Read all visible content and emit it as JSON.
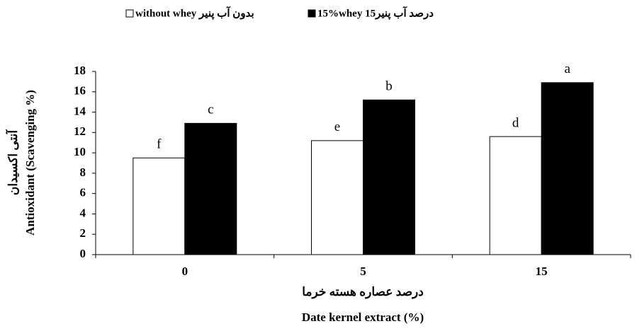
{
  "chart_data": {
    "type": "bar",
    "categories": [
      "0",
      "5",
      "15"
    ],
    "series": [
      {
        "name": "without whey بدون آب پنیر",
        "color": "#ffffff",
        "values": [
          9.5,
          11.2,
          11.6
        ],
        "annotations": [
          "f",
          "e",
          "d"
        ]
      },
      {
        "name": "15%whey درصد آب پنیر15",
        "color": "#000000",
        "values": [
          12.9,
          15.2,
          16.9
        ],
        "annotations": [
          "c",
          "b",
          "a"
        ]
      }
    ],
    "ylabel": [
      "آنتی اکسیدان",
      "Antioxidant (Scavenging %)"
    ],
    "xlabel": [
      "درصد عصاره هسته خرما",
      "Date kernel extract (%)"
    ],
    "ylim": [
      0,
      18
    ],
    "yticks": [
      0,
      2,
      4,
      6,
      8,
      10,
      12,
      14,
      16,
      18
    ],
    "grid": false,
    "legend": "top"
  }
}
